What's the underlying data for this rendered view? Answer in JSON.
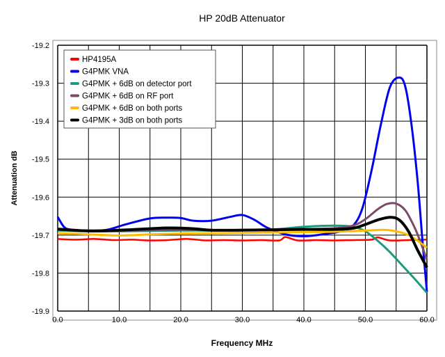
{
  "chart_data": {
    "type": "line",
    "title": "HP 20dB Attenuator",
    "xlabel": "Frequency MHz",
    "ylabel": "Attenuation dB",
    "xlim": [
      0,
      60
    ],
    "ylim": [
      -19.9,
      -19.2
    ],
    "grid": true,
    "legend_position": "top-left",
    "xticks": [
      "0.0",
      "10.0",
      "20.0",
      "30.0",
      "40.0",
      "50.0",
      "60.0"
    ],
    "yticks": [
      "-19.2",
      "-19.3",
      "-19.4",
      "-19.5",
      "-19.6",
      "-19.7",
      "-19.8",
      "-19.9"
    ],
    "series": [
      {
        "name": "HP4195A",
        "color": "#ff0000",
        "x": [
          0,
          3,
          6,
          9,
          12,
          15,
          18,
          21,
          24,
          27,
          30,
          33,
          36,
          37,
          39,
          42,
          45,
          48,
          51,
          52,
          54,
          57,
          60
        ],
        "y": [
          -19.71,
          -19.712,
          -19.71,
          -19.713,
          -19.712,
          -19.714,
          -19.713,
          -19.71,
          -19.714,
          -19.713,
          -19.714,
          -19.713,
          -19.714,
          -19.705,
          -19.714,
          -19.713,
          -19.714,
          -19.713,
          -19.712,
          -19.706,
          -19.714,
          -19.713,
          -19.712
        ]
      },
      {
        "name": "G4PMK VNA",
        "color": "#0000ee",
        "x": [
          0,
          1,
          2,
          5,
          8,
          11,
          15,
          18,
          20,
          22,
          25,
          28,
          30,
          32,
          34,
          37,
          40,
          43,
          46,
          48,
          49.5,
          51,
          52.5,
          54,
          55.5,
          56.5,
          57.5,
          58.5,
          59.3,
          60
        ],
        "y": [
          -19.652,
          -19.678,
          -19.685,
          -19.688,
          -19.686,
          -19.672,
          -19.656,
          -19.654,
          -19.655,
          -19.662,
          -19.662,
          -19.652,
          -19.647,
          -19.66,
          -19.68,
          -19.698,
          -19.703,
          -19.698,
          -19.69,
          -19.675,
          -19.63,
          -19.53,
          -19.41,
          -19.31,
          -19.285,
          -19.31,
          -19.41,
          -19.56,
          -19.72,
          -19.85
        ]
      },
      {
        "name": "G4PMK + 6dB on detector port",
        "color": "#1a9a80",
        "x": [
          0,
          5,
          10,
          15,
          20,
          25,
          30,
          35,
          40,
          45,
          48,
          50,
          52,
          54,
          56,
          58,
          60
        ],
        "y": [
          -19.688,
          -19.69,
          -19.69,
          -19.689,
          -19.688,
          -19.688,
          -19.687,
          -19.685,
          -19.678,
          -19.675,
          -19.678,
          -19.69,
          -19.715,
          -19.745,
          -19.78,
          -19.815,
          -19.852
        ]
      },
      {
        "name": "G4PMK + 6dB on RF port",
        "color": "#7a4a6a",
        "x": [
          0,
          5,
          10,
          15,
          20,
          25,
          30,
          35,
          40,
          45,
          48,
          50,
          52,
          53.5,
          55,
          56.5,
          58,
          59,
          60
        ],
        "y": [
          -19.686,
          -19.688,
          -19.688,
          -19.687,
          -19.686,
          -19.687,
          -19.686,
          -19.685,
          -19.684,
          -19.682,
          -19.675,
          -19.658,
          -19.632,
          -19.618,
          -19.617,
          -19.635,
          -19.68,
          -19.72,
          -19.765
        ]
      },
      {
        "name": "G4PMK + 6dB on both ports",
        "color": "#ffbb00",
        "x": [
          0,
          5,
          10,
          15,
          20,
          25,
          30,
          35,
          40,
          45,
          50,
          53,
          55,
          57,
          58.5,
          60
        ],
        "y": [
          -19.695,
          -19.698,
          -19.701,
          -19.698,
          -19.696,
          -19.695,
          -19.694,
          -19.693,
          -19.692,
          -19.691,
          -19.688,
          -19.686,
          -19.69,
          -19.7,
          -19.715,
          -19.733
        ]
      },
      {
        "name": "G4PMK + 3dB on both ports",
        "color": "#000000",
        "x": [
          0,
          5,
          10,
          15,
          18,
          22,
          25,
          30,
          35,
          40,
          45,
          48,
          50,
          52,
          54,
          55.5,
          57,
          58.5,
          60
        ],
        "y": [
          -19.684,
          -19.689,
          -19.687,
          -19.683,
          -19.681,
          -19.683,
          -19.687,
          -19.687,
          -19.686,
          -19.685,
          -19.685,
          -19.682,
          -19.672,
          -19.66,
          -19.653,
          -19.66,
          -19.69,
          -19.74,
          -19.785
        ]
      }
    ]
  }
}
